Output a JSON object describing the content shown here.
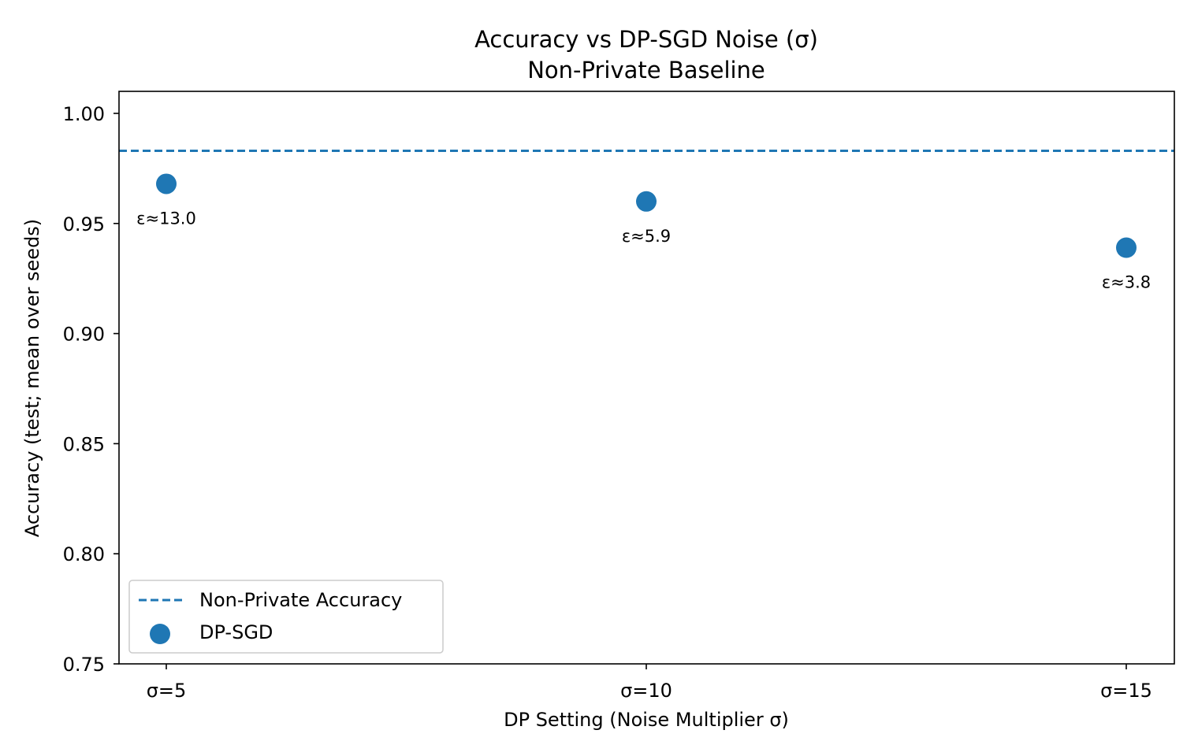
{
  "chart_data": {
    "type": "scatter",
    "title": "Accuracy vs DP-SGD Noise (σ)",
    "subtitle": "Non-Private Baseline",
    "xlabel": "DP Setting (Noise Multiplier σ)",
    "ylabel": "Accuracy (test; mean over seeds)",
    "categories": [
      "σ=5",
      "σ=10",
      "σ=15"
    ],
    "ylim": [
      0.75,
      1.01
    ],
    "yticks": [
      0.75,
      0.8,
      0.85,
      0.9,
      0.95,
      1.0
    ],
    "ytick_labels": [
      "0.75",
      "0.80",
      "0.85",
      "0.90",
      "0.95",
      "1.00"
    ],
    "series": [
      {
        "name": "DP-SGD",
        "values": [
          0.968,
          0.96,
          0.939
        ],
        "annotations": [
          "ε≈13.0",
          "ε≈5.9",
          "ε≈3.8"
        ],
        "color": "#1f77b4"
      }
    ],
    "baseline": {
      "name": "Non-Private Accuracy",
      "value": 0.983,
      "style": "dashed",
      "color": "#1f77b4"
    },
    "grid": false,
    "legend_position": "lower-left"
  }
}
